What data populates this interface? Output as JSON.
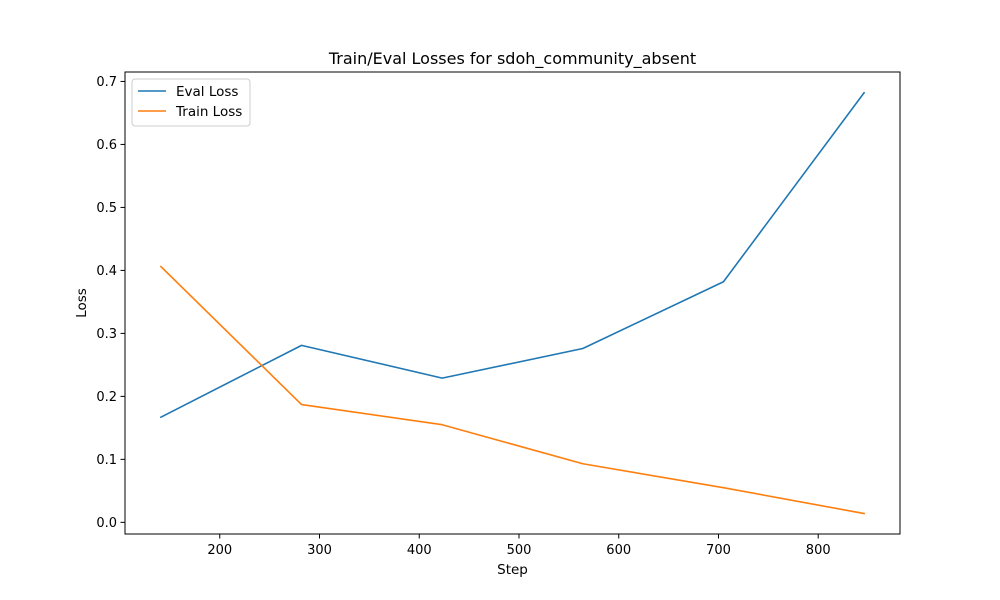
{
  "chart_data": {
    "type": "line",
    "title": "Train/Eval Losses for sdoh_community_absent",
    "xlabel": "Step",
    "ylabel": "Loss",
    "xlim": [
      105,
      882
    ],
    "ylim": [
      -0.0185,
      0.715
    ],
    "xticks": [
      200,
      300,
      400,
      500,
      600,
      700,
      800
    ],
    "yticks": [
      0.0,
      0.1,
      0.2,
      0.3,
      0.4,
      0.5,
      0.6,
      0.7
    ],
    "grid": false,
    "legend_position": "upper left",
    "series": [
      {
        "name": "Eval Loss",
        "color": "#1f77b4",
        "x": [
          141,
          282,
          423,
          564,
          705,
          846
        ],
        "y": [
          0.167,
          0.281,
          0.229,
          0.276,
          0.382,
          0.682
        ]
      },
      {
        "name": "Train Loss",
        "color": "#ff7f0e",
        "x": [
          141,
          282,
          423,
          564,
          705,
          846
        ],
        "y": [
          0.406,
          0.187,
          0.155,
          0.093,
          0.055,
          0.014
        ]
      }
    ]
  }
}
